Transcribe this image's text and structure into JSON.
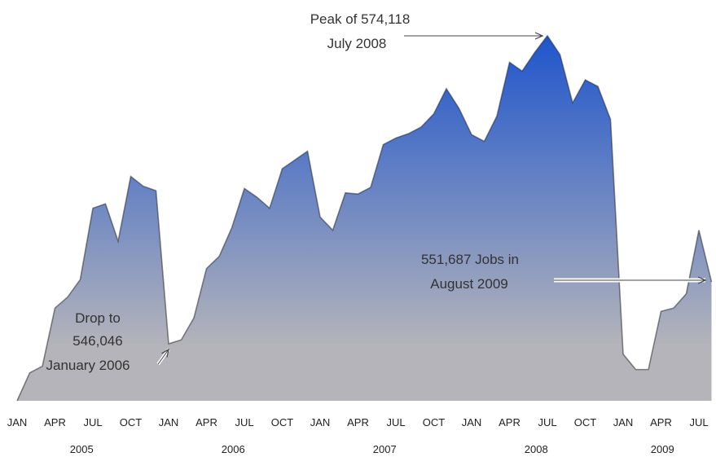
{
  "chart_data": {
    "type": "area",
    "categories": [
      "JAN",
      null,
      null,
      "APR",
      null,
      null,
      "JUL",
      null,
      null,
      "OCT",
      null,
      null,
      "JAN",
      null,
      null,
      "APR",
      null,
      null,
      "JUL",
      null,
      null,
      "OCT",
      null,
      null,
      "JAN",
      null,
      null,
      "APR",
      null,
      null,
      "JUL",
      null,
      null,
      "OCT",
      null,
      null,
      "JAN",
      null,
      null,
      "APR",
      null,
      null,
      "JUL",
      null,
      null,
      "OCT",
      null,
      null,
      "JAN",
      null,
      null,
      "APR",
      null,
      null,
      "JUL",
      null
    ],
    "years": [
      "2005",
      "2006",
      "2007",
      "2008",
      "2009"
    ],
    "values": [
      540850,
      543400,
      544000,
      549300,
      550300,
      551900,
      558400,
      558800,
      555400,
      561300,
      560400,
      560000,
      546046,
      546400,
      548400,
      552900,
      554000,
      556600,
      560200,
      559400,
      558400,
      562000,
      562800,
      563600,
      557600,
      556400,
      559800,
      559700,
      560300,
      564200,
      564800,
      565200,
      565800,
      567000,
      569300,
      567500,
      565100,
      564500,
      566800,
      571700,
      570900,
      572600,
      574118,
      572400,
      568000,
      570100,
      569500,
      566500,
      545100,
      543700,
      543700,
      549000,
      549300,
      550600,
      556400,
      551687
    ],
    "ylim": [
      540850,
      577380
    ],
    "color_top": "#1f55cc",
    "color_bottom": "#b4b4ba",
    "annotations": [
      {
        "lines": [
          "Peak of 574,118",
          "July 2008"
        ]
      },
      {
        "lines": [
          "Drop to",
          "546,046",
          "January 2006"
        ]
      },
      {
        "lines": [
          "551,687 Jobs in",
          "August 2009"
        ]
      }
    ]
  }
}
